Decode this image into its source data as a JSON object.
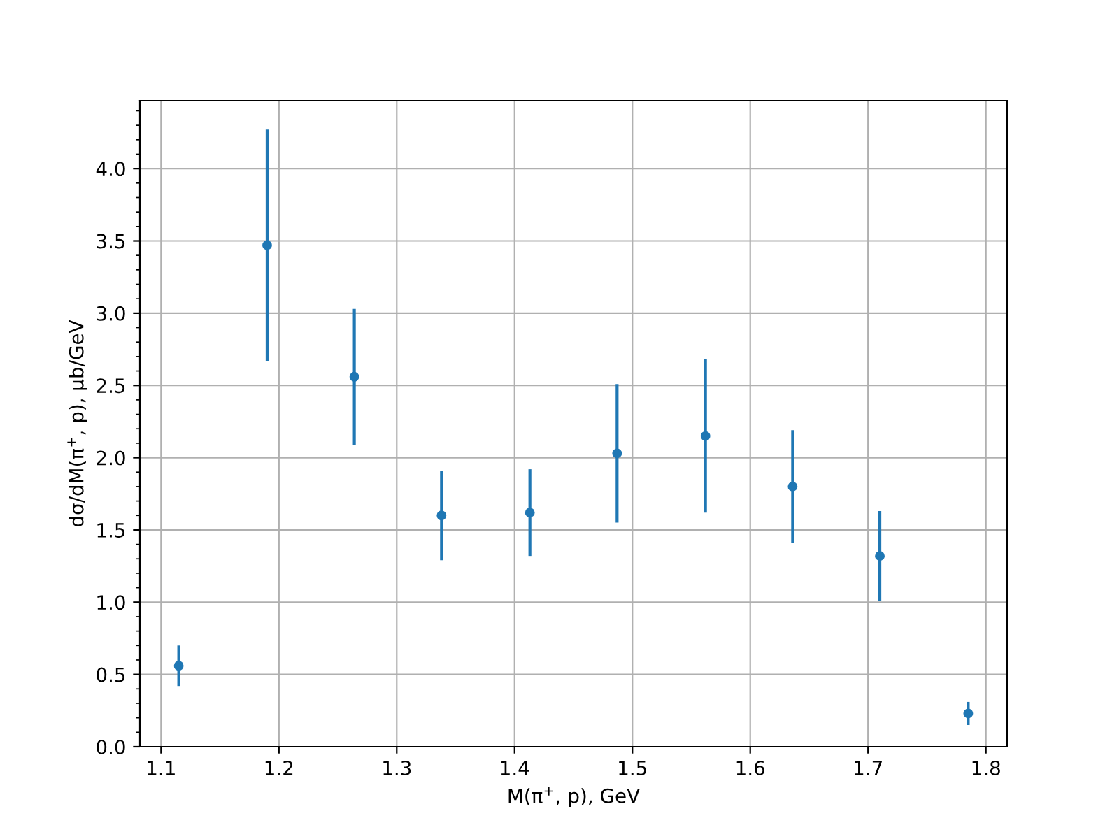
{
  "chart_data": {
    "type": "scatter",
    "xlabel": "M(π$^{+}$, p), GeV",
    "ylabel": "dσ/dM(π$^{+}$, p), μb/GeV",
    "x": [
      1.115,
      1.19,
      1.264,
      1.338,
      1.413,
      1.487,
      1.562,
      1.636,
      1.71,
      1.785
    ],
    "series": [
      {
        "color": "#1f77b4",
        "values": [
          0.56,
          3.47,
          2.56,
          1.6,
          1.62,
          2.03,
          2.15,
          1.8,
          1.32,
          0.23
        ],
        "errors": [
          0.14,
          0.8,
          0.47,
          0.31,
          0.3,
          0.48,
          0.53,
          0.39,
          0.31,
          0.08
        ]
      }
    ],
    "xlim": [
      1.082,
      1.818
    ],
    "xticks": [
      1.1,
      1.2,
      1.3,
      1.4,
      1.5,
      1.6,
      1.7,
      1.8
    ],
    "ylim": [
      0,
      4.47
    ],
    "yticks": [
      {
        "value": 0,
        "label": "0.0"
      },
      0.5,
      {
        "value": 1,
        "label": "1.0"
      },
      1.5,
      {
        "value": 2,
        "label": "2.0"
      },
      2.5,
      {
        "value": 3,
        "label": "3.0"
      },
      3.5,
      {
        "value": 4,
        "label": "4.0"
      }
    ],
    "grid": true,
    "marker": "circle",
    "line_style": "none"
  }
}
